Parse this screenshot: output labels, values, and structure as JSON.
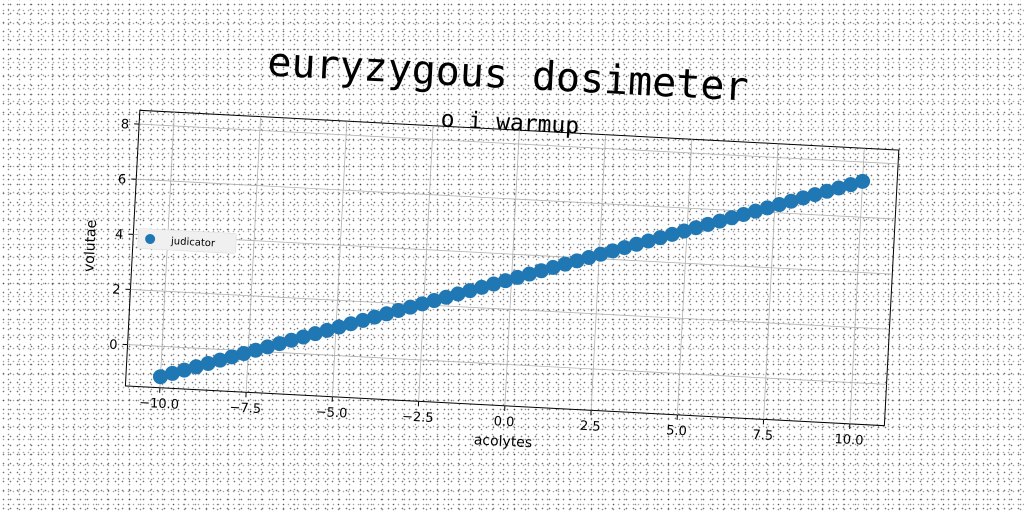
{
  "chart_data": {
    "type": "scatter",
    "title": "euryzygous dosimeter",
    "subtitle": "o i warmup",
    "xlabel": "acolytes",
    "ylabel": "volutae",
    "xlim": [
      -11,
      11
    ],
    "ylim": [
      -1.5,
      8.5
    ],
    "xticks": [
      "−10.0",
      "−7.5",
      "−5.0",
      "−2.5",
      "0.0",
      "2.5",
      "5.0",
      "7.5",
      "10.0"
    ],
    "yticks": [
      "0",
      "2",
      "4",
      "6",
      "8"
    ],
    "grid": true,
    "legend_position": "center-left",
    "series": [
      {
        "name": "judicator",
        "color": "#1f77b4",
        "x_range": [
          -10,
          10
        ],
        "points": 60,
        "slope": 0.42,
        "intercept": 3.1
      }
    ]
  }
}
